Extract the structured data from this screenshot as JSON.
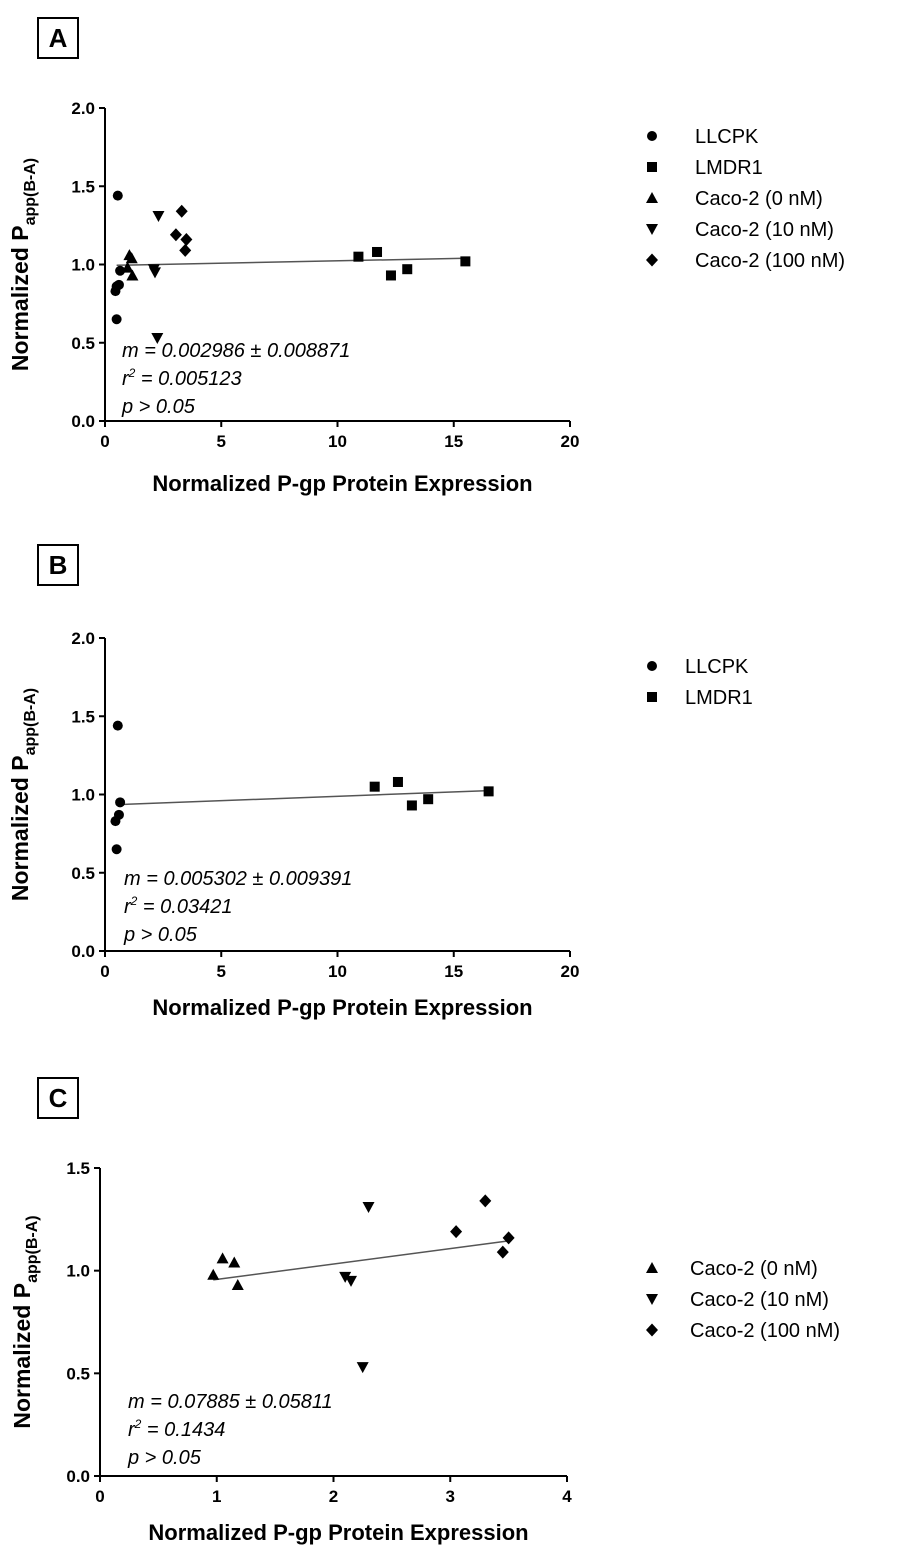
{
  "chart_data": [
    {
      "panel_label": "A",
      "type": "scatter",
      "xlabel": "Normalized P-gp Protein Expression",
      "ylabel_main": "Normalized P",
      "ylabel_sub": "app(B-A)",
      "xlim": [
        0,
        20
      ],
      "ylim": [
        0.0,
        2.0
      ],
      "xticks": [
        "0",
        "5",
        "10",
        "15",
        "20"
      ],
      "yticks": [
        "0.0",
        "0.5",
        "1.0",
        "1.5",
        "2.0"
      ],
      "stats": {
        "m": "m = 0.002986 ± 0.008871",
        "r2_prefix": "r",
        "r2_sup": "2",
        "r2_rest": " = 0.005123",
        "p": "p > 0.05"
      },
      "fit_line": {
        "x": [
          0.5,
          15.5
        ],
        "y": [
          0.995,
          1.04
        ]
      },
      "legend_placement": "right",
      "series": [
        {
          "name": "LLCPK",
          "marker": "circle",
          "x": [
            0.45,
            0.5,
            0.5,
            0.55,
            0.6,
            0.65
          ],
          "y": [
            0.83,
            0.86,
            0.65,
            1.44,
            0.87,
            0.96
          ]
        },
        {
          "name": "LMDR1",
          "marker": "square",
          "x": [
            10.9,
            11.7,
            12.3,
            13.0,
            15.5
          ],
          "y": [
            1.05,
            1.08,
            0.93,
            0.97,
            1.02
          ]
        },
        {
          "name": "Caco-2 (0 nM)",
          "marker": "triangle-up",
          "x": [
            0.97,
            1.05,
            1.15,
            1.18
          ],
          "y": [
            0.98,
            1.06,
            1.04,
            0.93
          ]
        },
        {
          "name": "Caco-2 (10 nM)",
          "marker": "triangle-down",
          "x": [
            2.1,
            2.15,
            2.25,
            2.3
          ],
          "y": [
            0.97,
            0.95,
            0.53,
            1.31
          ]
        },
        {
          "name": "Caco-2 (100 nM)",
          "marker": "diamond",
          "x": [
            3.05,
            3.3,
            3.45,
            3.5
          ],
          "y": [
            1.19,
            1.34,
            1.09,
            1.16
          ]
        }
      ]
    },
    {
      "panel_label": "B",
      "type": "scatter",
      "xlabel": "Normalized P-gp Protein Expression",
      "ylabel_main": "Normalized P",
      "ylabel_sub": "app(B-A)",
      "xlim": [
        0,
        20
      ],
      "ylim": [
        0.0,
        2.0
      ],
      "xticks": [
        "0",
        "5",
        "10",
        "15",
        "20"
      ],
      "yticks": [
        "0.0",
        "0.5",
        "1.0",
        "1.5",
        "2.0"
      ],
      "stats": {
        "m": "m = 0.005302 ± 0.009391",
        "r2_prefix": "r",
        "r2_sup": "2",
        "r2_rest": " = 0.03421",
        "p": "p > 0.05"
      },
      "fit_line": {
        "x": [
          0.5,
          16.5
        ],
        "y": [
          0.935,
          1.025
        ]
      },
      "legend_placement": "top-right",
      "series": [
        {
          "name": "LLCPK",
          "marker": "circle",
          "x": [
            0.45,
            0.5,
            0.55,
            0.6,
            0.65
          ],
          "y": [
            0.83,
            0.65,
            1.44,
            0.87,
            0.95
          ]
        },
        {
          "name": "LMDR1",
          "marker": "square",
          "x": [
            11.6,
            12.6,
            13.2,
            13.9,
            16.5
          ],
          "y": [
            1.05,
            1.08,
            0.93,
            0.97,
            1.02
          ]
        }
      ]
    },
    {
      "panel_label": "C",
      "type": "scatter",
      "xlabel": "Normalized P-gp Protein Expression",
      "ylabel_main": "Normalized P",
      "ylabel_sub": "app(B-A)",
      "xlim": [
        0,
        4
      ],
      "ylim": [
        0.0,
        1.5
      ],
      "xticks": [
        "0",
        "1",
        "2",
        "3",
        "4"
      ],
      "yticks": [
        "0.0",
        "0.5",
        "1.0",
        "1.5"
      ],
      "stats": {
        "m": "m = 0.07885 ± 0.05811",
        "r2_prefix": "r",
        "r2_sup": "2",
        "r2_rest": " = 0.1434",
        "p": "p > 0.05"
      },
      "fit_line": {
        "x": [
          0.97,
          3.5
        ],
        "y": [
          0.955,
          1.145
        ]
      },
      "legend_placement": "right",
      "series": [
        {
          "name": "Caco-2 (0 nM)",
          "marker": "triangle-up",
          "x": [
            0.97,
            1.05,
            1.15,
            1.18
          ],
          "y": [
            0.98,
            1.06,
            1.04,
            0.93
          ]
        },
        {
          "name": "Caco-2 (10 nM)",
          "marker": "triangle-down",
          "x": [
            2.1,
            2.15,
            2.25,
            2.3
          ],
          "y": [
            0.97,
            0.95,
            0.53,
            1.31
          ]
        },
        {
          "name": "Caco-2 (100 nM)",
          "marker": "diamond",
          "x": [
            3.05,
            3.3,
            3.45,
            3.5
          ],
          "y": [
            1.19,
            1.34,
            1.09,
            1.16
          ]
        }
      ]
    }
  ]
}
